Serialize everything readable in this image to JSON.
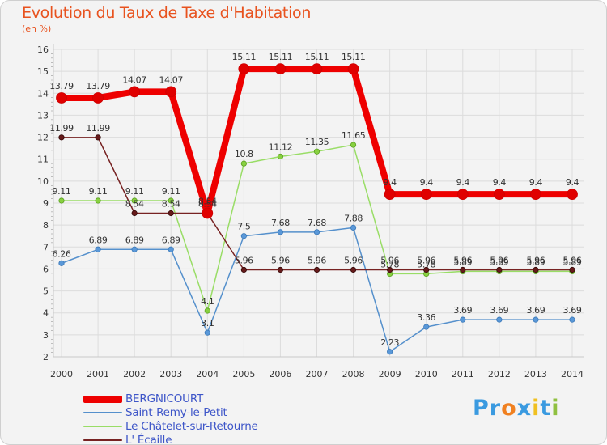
{
  "chart_data": {
    "type": "line",
    "title": "Evolution du Taux de Taxe d'Habitation",
    "unit": "(en %)",
    "xlabel": "",
    "ylabel": "",
    "ylim": [
      2,
      16
    ],
    "yticks": [
      "2",
      "3",
      "4",
      "5",
      "6",
      "7",
      "8",
      "9",
      "10",
      "11",
      "12",
      "13",
      "14",
      "15",
      "16"
    ],
    "categories": [
      "2000",
      "2001",
      "2002",
      "2003",
      "2004",
      "2005",
      "2006",
      "2007",
      "2008",
      "2009",
      "2010",
      "2011",
      "2012",
      "2013",
      "2014"
    ],
    "series": [
      {
        "name": "BERGNICOURT",
        "color": "#ee0000",
        "values": [
          13.79,
          13.79,
          14.07,
          14.07,
          8.54,
          15.11,
          15.11,
          15.11,
          15.11,
          9.4,
          9.4,
          9.4,
          9.4,
          9.4,
          9.4
        ],
        "labels": [
          "13.79",
          "13.79",
          "14.07",
          "14.07",
          "8.54",
          "15.11",
          "15.11",
          "15.11",
          "15.11",
          "9.4",
          "9.4",
          "9.4",
          "9.4",
          "9.4",
          "9.4"
        ]
      },
      {
        "name": "Saint-Remy-le-Petit",
        "color": "#5590cc",
        "values": [
          6.26,
          6.89,
          6.89,
          6.89,
          3.1,
          7.5,
          7.68,
          7.68,
          7.88,
          2.23,
          3.36,
          3.69,
          3.69,
          3.69,
          3.69
        ],
        "labels": [
          "6.26",
          "6.89",
          "6.89",
          "6.89",
          "3.1",
          "7.5",
          "7.68",
          "7.68",
          "7.88",
          "2.23",
          "3.36",
          "3.69",
          "3.69",
          "3.69",
          "3.69"
        ]
      },
      {
        "name": "Le Châtelet-sur-Retourne",
        "color": "#99dd66",
        "values": [
          9.11,
          9.11,
          9.11,
          9.11,
          4.1,
          10.8,
          11.12,
          11.35,
          11.65,
          5.78,
          5.78,
          5.89,
          5.89,
          5.89,
          5.89
        ],
        "labels": [
          "9.11",
          "9.11",
          "9.11",
          "9.11",
          "4.1",
          "10.8",
          "11.12",
          "11.35",
          "11.65",
          "5.78",
          "5.78",
          "5.89",
          "5.89",
          "5.89",
          "5.89"
        ]
      },
      {
        "name": "L' Écaille",
        "color": "#772222",
        "values": [
          11.99,
          11.99,
          8.54,
          8.54,
          8.54,
          5.96,
          5.96,
          5.96,
          5.96,
          5.96,
          5.96,
          5.96,
          5.96,
          5.96,
          5.96
        ],
        "labels": [
          "11.99",
          "11.99",
          "8.54",
          "8.54",
          "8.54",
          "5.96",
          "5.96",
          "5.96",
          "5.96",
          "5.96",
          "5.96",
          "5.96",
          "5.96",
          "5.96",
          "5.96"
        ]
      }
    ],
    "legend": [
      "BERGNICOURT",
      "Saint-Remy-le-Petit",
      "Le Châtelet-sur-Retourne",
      "L' Écaille"
    ],
    "grid": true
  },
  "brand": {
    "text": "Proxiti",
    "letters": [
      "P",
      "r",
      "o",
      "x",
      "i",
      "t",
      "i"
    ],
    "colors": [
      "#3a9ae0",
      "#3a9ae0",
      "#f08020",
      "#3a9ae0",
      "#f0c020",
      "#3a9ae0",
      "#90c040"
    ]
  }
}
